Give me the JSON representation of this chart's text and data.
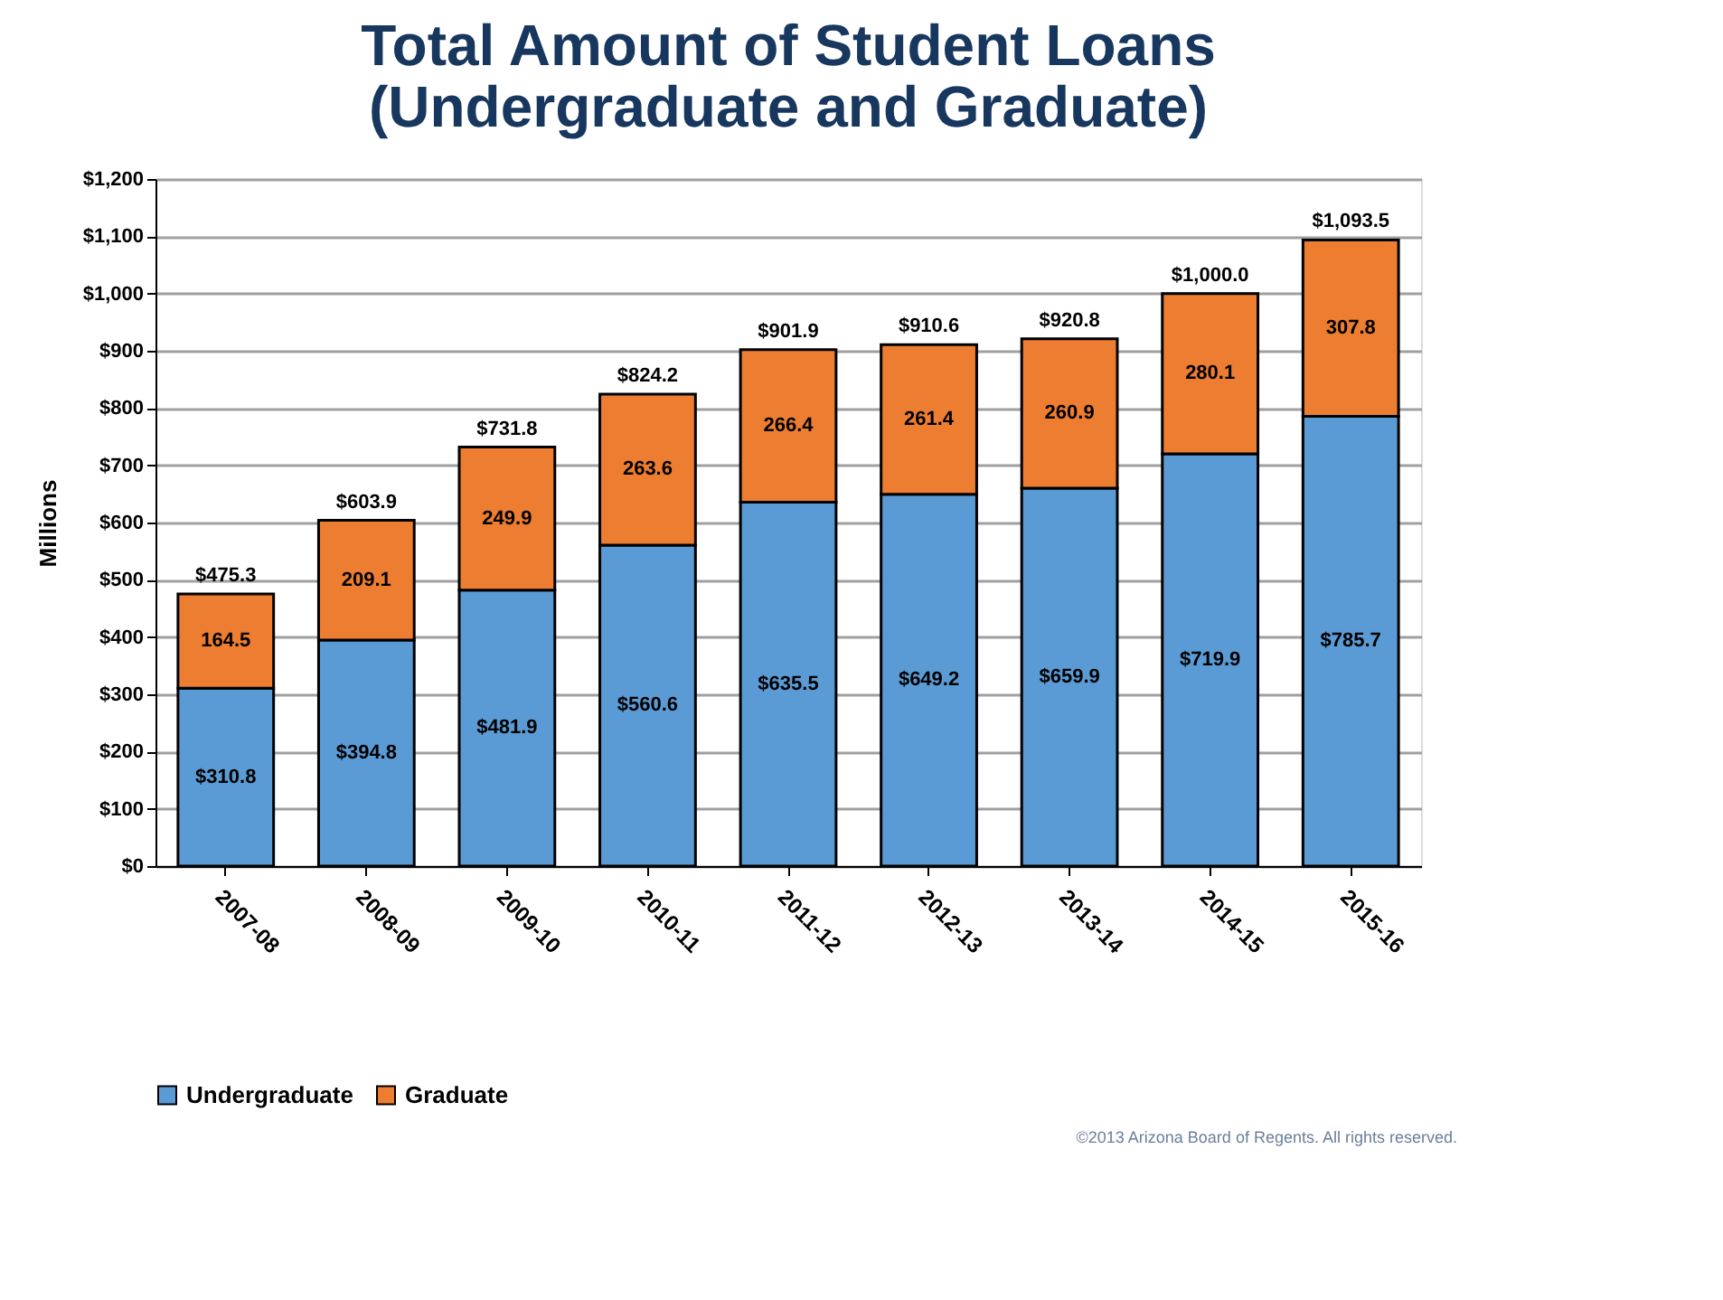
{
  "chart_data": {
    "type": "bar",
    "title": "Total Amount of Student Loans\n(Undergraduate and Graduate)",
    "ylabel": "Millions",
    "categories": [
      "2007-08",
      "2008-09",
      "2009-10",
      "2010-11",
      "2011-12",
      "2012-13",
      "2013-14",
      "2014-15",
      "2015-16"
    ],
    "stacked": true,
    "series": [
      {
        "name": "Undergraduate",
        "color": "#5b9bd5",
        "values": [
          310.8,
          394.8,
          481.9,
          560.6,
          635.5,
          649.2,
          659.9,
          719.9,
          785.7
        ],
        "value_labels": [
          "$310.8",
          "$394.8",
          "$481.9",
          "$560.6",
          "$635.5",
          "$649.2",
          "$659.9",
          "$719.9",
          "$785.7"
        ]
      },
      {
        "name": "Graduate",
        "color": "#ed7d31",
        "values": [
          164.5,
          209.1,
          249.9,
          263.6,
          266.4,
          261.4,
          260.9,
          280.1,
          307.8
        ],
        "value_labels": [
          "164.5",
          "209.1",
          "249.9",
          "263.6",
          "266.4",
          "261.4",
          "260.9",
          "280.1",
          "307.8"
        ]
      }
    ],
    "totals": [
      "$475.3",
      "$603.9",
      "$731.8",
      "$824.2",
      "$901.9",
      "$910.6",
      "$920.8",
      "$1,000.0",
      "$1,093.5"
    ],
    "ylim": [
      0,
      1200
    ],
    "yticks": [
      {
        "value": 0,
        "label": "$0"
      },
      {
        "value": 100,
        "label": "$100"
      },
      {
        "value": 200,
        "label": "$200"
      },
      {
        "value": 300,
        "label": "$300"
      },
      {
        "value": 400,
        "label": "$400"
      },
      {
        "value": 500,
        "label": "$500"
      },
      {
        "value": 600,
        "label": "$600"
      },
      {
        "value": 700,
        "label": "$700"
      },
      {
        "value": 800,
        "label": "$800"
      },
      {
        "value": 900,
        "label": "$900"
      },
      {
        "value": 1000,
        "label": "$1,000"
      },
      {
        "value": 1100,
        "label": "$1,100"
      },
      {
        "value": 1200,
        "label": "$1,200"
      }
    ],
    "grid": "y",
    "legend": "bottom",
    "annotations": [
      "©2013 Arizona Board of Regents. All rights reserved."
    ]
  }
}
